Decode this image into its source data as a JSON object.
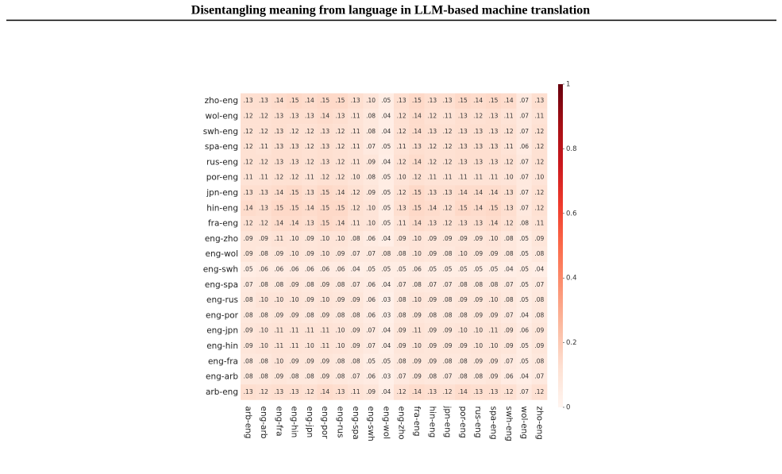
{
  "header": {
    "title": "Disentangling meaning from language in LLM-based machine translation"
  },
  "chart_data": {
    "type": "heatmap",
    "rows": [
      "zho-eng",
      "wol-eng",
      "swh-eng",
      "spa-eng",
      "rus-eng",
      "por-eng",
      "jpn-eng",
      "hin-eng",
      "fra-eng",
      "eng-zho",
      "eng-wol",
      "eng-swh",
      "eng-spa",
      "eng-rus",
      "eng-por",
      "eng-jpn",
      "eng-hin",
      "eng-fra",
      "eng-arb",
      "arb-eng"
    ],
    "columns": [
      "arb-eng",
      "eng-arb",
      "eng-fra",
      "eng-hin",
      "eng-jpn",
      "eng-por",
      "eng-rus",
      "eng-spa",
      "eng-swh",
      "eng-wol",
      "eng-zho",
      "fra-eng",
      "hin-eng",
      "jpn-eng",
      "por-eng",
      "rus-eng",
      "spa-eng",
      "swh-eng",
      "wol-eng",
      "zho-eng"
    ],
    "values": [
      [
        0.13,
        0.13,
        0.14,
        0.15,
        0.14,
        0.15,
        0.15,
        0.13,
        0.1,
        0.05,
        0.13,
        0.15,
        0.13,
        0.13,
        0.15,
        0.14,
        0.15,
        0.14,
        0.07,
        0.13
      ],
      [
        0.12,
        0.12,
        0.13,
        0.13,
        0.13,
        0.14,
        0.13,
        0.11,
        0.08,
        0.04,
        0.12,
        0.14,
        0.12,
        0.11,
        0.13,
        0.12,
        0.13,
        0.11,
        0.07,
        0.11
      ],
      [
        0.12,
        0.12,
        0.13,
        0.12,
        0.12,
        0.13,
        0.12,
        0.11,
        0.08,
        0.04,
        0.12,
        0.14,
        0.13,
        0.12,
        0.13,
        0.13,
        0.13,
        0.12,
        0.07,
        0.12
      ],
      [
        0.12,
        0.11,
        0.13,
        0.13,
        0.12,
        0.13,
        0.12,
        0.11,
        0.07,
        0.05,
        0.11,
        0.13,
        0.12,
        0.12,
        0.13,
        0.13,
        0.13,
        0.11,
        0.06,
        0.12
      ],
      [
        0.12,
        0.12,
        0.13,
        0.13,
        0.12,
        0.13,
        0.12,
        0.11,
        0.09,
        0.04,
        0.12,
        0.14,
        0.12,
        0.12,
        0.13,
        0.13,
        0.13,
        0.12,
        0.07,
        0.12
      ],
      [
        0.11,
        0.11,
        0.12,
        0.12,
        0.11,
        0.12,
        0.12,
        0.1,
        0.08,
        0.05,
        0.1,
        0.12,
        0.11,
        0.11,
        0.11,
        0.11,
        0.11,
        0.1,
        0.07,
        0.1
      ],
      [
        0.13,
        0.13,
        0.14,
        0.15,
        0.13,
        0.15,
        0.14,
        0.12,
        0.09,
        0.05,
        0.12,
        0.15,
        0.13,
        0.13,
        0.14,
        0.14,
        0.14,
        0.13,
        0.07,
        0.12
      ],
      [
        0.14,
        0.13,
        0.15,
        0.15,
        0.14,
        0.15,
        0.15,
        0.12,
        0.1,
        0.05,
        0.13,
        0.15,
        0.14,
        0.12,
        0.15,
        0.14,
        0.15,
        0.13,
        0.07,
        0.12
      ],
      [
        0.12,
        0.12,
        0.14,
        0.14,
        0.13,
        0.15,
        0.14,
        0.11,
        0.1,
        0.05,
        0.11,
        0.14,
        0.13,
        0.12,
        0.13,
        0.13,
        0.14,
        0.12,
        0.08,
        0.11
      ],
      [
        0.09,
        0.09,
        0.11,
        0.1,
        0.09,
        0.1,
        0.1,
        0.08,
        0.06,
        0.04,
        0.09,
        0.1,
        0.09,
        0.09,
        0.09,
        0.09,
        0.1,
        0.08,
        0.05,
        0.09
      ],
      [
        0.09,
        0.08,
        0.09,
        0.1,
        0.09,
        0.1,
        0.09,
        0.07,
        0.07,
        0.08,
        0.08,
        0.1,
        0.09,
        0.08,
        0.1,
        0.09,
        0.09,
        0.08,
        0.05,
        0.08
      ],
      [
        0.05,
        0.06,
        0.06,
        0.06,
        0.06,
        0.06,
        0.06,
        0.04,
        0.05,
        0.05,
        0.05,
        0.06,
        0.05,
        0.05,
        0.05,
        0.05,
        0.05,
        0.04,
        0.05,
        0.04
      ],
      [
        0.07,
        0.08,
        0.08,
        0.09,
        0.08,
        0.09,
        0.08,
        0.07,
        0.06,
        0.04,
        0.07,
        0.08,
        0.07,
        0.07,
        0.08,
        0.08,
        0.08,
        0.07,
        0.05,
        0.07
      ],
      [
        0.08,
        0.1,
        0.1,
        0.1,
        0.09,
        0.1,
        0.09,
        0.09,
        0.06,
        0.03,
        0.08,
        0.1,
        0.09,
        0.08,
        0.09,
        0.09,
        0.1,
        0.08,
        0.05,
        0.08
      ],
      [
        0.08,
        0.08,
        0.09,
        0.09,
        0.08,
        0.09,
        0.08,
        0.08,
        0.06,
        0.03,
        0.08,
        0.09,
        0.08,
        0.08,
        0.08,
        0.09,
        0.09,
        0.07,
        0.04,
        0.08
      ],
      [
        0.09,
        0.1,
        0.11,
        0.11,
        0.11,
        0.11,
        0.1,
        0.09,
        0.07,
        0.04,
        0.09,
        0.11,
        0.09,
        0.09,
        0.1,
        0.1,
        0.11,
        0.09,
        0.06,
        0.09
      ],
      [
        0.09,
        0.1,
        0.11,
        0.11,
        0.1,
        0.11,
        0.1,
        0.09,
        0.07,
        0.04,
        0.09,
        0.1,
        0.09,
        0.09,
        0.09,
        0.1,
        0.1,
        0.09,
        0.05,
        0.09
      ],
      [
        0.08,
        0.08,
        0.1,
        0.09,
        0.09,
        0.09,
        0.08,
        0.08,
        0.05,
        0.05,
        0.08,
        0.09,
        0.09,
        0.08,
        0.08,
        0.09,
        0.09,
        0.07,
        0.05,
        0.08
      ],
      [
        0.08,
        0.08,
        0.09,
        0.08,
        0.08,
        0.09,
        0.08,
        0.07,
        0.06,
        0.03,
        0.07,
        0.09,
        0.08,
        0.07,
        0.08,
        0.08,
        0.09,
        0.06,
        0.04,
        0.07
      ],
      [
        0.13,
        0.12,
        0.13,
        0.13,
        0.12,
        0.14,
        0.13,
        0.11,
        0.09,
        0.04,
        0.12,
        0.14,
        0.13,
        0.12,
        0.14,
        0.13,
        0.13,
        0.12,
        0.07,
        0.12
      ]
    ],
    "value_labels": [
      [
        ".13",
        ".13",
        ".14",
        ".15",
        ".14",
        ".15",
        ".15",
        ".13",
        ".10",
        ".05",
        ".13",
        ".15",
        ".13",
        ".13",
        ".15",
        ".14",
        ".15",
        ".14",
        ".07",
        ".13"
      ],
      [
        ".12",
        ".12",
        ".13",
        ".13",
        ".13",
        ".14",
        ".13",
        ".11",
        ".08",
        ".04",
        ".12",
        ".14",
        ".12",
        ".11",
        ".13",
        ".12",
        ".13",
        ".11",
        ".07",
        ".11"
      ],
      [
        ".12",
        ".12",
        ".13",
        ".12",
        ".12",
        ".13",
        ".12",
        ".11",
        ".08",
        ".04",
        ".12",
        ".14",
        ".13",
        ".12",
        ".13",
        ".13",
        ".13",
        ".12",
        ".07",
        ".12"
      ],
      [
        ".12",
        ".11",
        ".13",
        ".13",
        ".12",
        ".13",
        ".12",
        ".11",
        ".07",
        ".05",
        ".11",
        ".13",
        ".12",
        ".12",
        ".13",
        ".13",
        ".13",
        ".11",
        ".06",
        ".12"
      ],
      [
        ".12",
        ".12",
        ".13",
        ".13",
        ".12",
        ".13",
        ".12",
        ".11",
        ".09",
        ".04",
        ".12",
        ".14",
        ".12",
        ".12",
        ".13",
        ".13",
        ".13",
        ".12",
        ".07",
        ".12"
      ],
      [
        ".11",
        ".11",
        ".12",
        ".12",
        ".11",
        ".12",
        ".12",
        ".10",
        ".08",
        ".05",
        ".10",
        ".12",
        ".11",
        ".11",
        ".11",
        ".11",
        ".11",
        ".10",
        ".07",
        ".10"
      ],
      [
        ".13",
        ".13",
        ".14",
        ".15",
        ".13",
        ".15",
        ".14",
        ".12",
        ".09",
        ".05",
        ".12",
        ".15",
        ".13",
        ".13",
        ".14",
        ".14",
        ".14",
        ".13",
        ".07",
        ".12"
      ],
      [
        ".14",
        ".13",
        ".15",
        ".15",
        ".14",
        ".15",
        ".15",
        ".12",
        ".10",
        ".05",
        ".13",
        ".15",
        ".14",
        ".12",
        ".15",
        ".14",
        ".15",
        ".13",
        ".07",
        ".12"
      ],
      [
        ".12",
        ".12",
        ".14",
        ".14",
        ".13",
        ".15",
        ".14",
        ".11",
        ".10",
        ".05",
        ".11",
        ".14",
        ".13",
        ".12",
        ".13",
        ".13",
        ".14",
        ".12",
        ".08",
        ".11"
      ],
      [
        ".09",
        ".09",
        ".11",
        ".10",
        ".09",
        ".10",
        ".10",
        ".08",
        ".06",
        ".04",
        ".09",
        ".10",
        ".09",
        ".09",
        ".09",
        ".09",
        ".10",
        ".08",
        ".05",
        ".09"
      ],
      [
        ".09",
        ".08",
        ".09",
        ".10",
        ".09",
        ".10",
        ".09",
        ".07",
        ".07",
        ".08",
        ".08",
        ".10",
        ".09",
        ".08",
        ".10",
        ".09",
        ".09",
        ".08",
        ".05",
        ".08"
      ],
      [
        ".05",
        ".06",
        ".06",
        ".06",
        ".06",
        ".06",
        ".06",
        ".04",
        ".05",
        ".05",
        ".05",
        ".06",
        ".05",
        ".05",
        ".05",
        ".05",
        ".05",
        ".04",
        ".05",
        ".04"
      ],
      [
        ".07",
        ".08",
        ".08",
        ".09",
        ".08",
        ".09",
        ".08",
        ".07",
        ".06",
        ".04",
        ".07",
        ".08",
        ".07",
        ".07",
        ".08",
        ".08",
        ".08",
        ".07",
        ".05",
        ".07"
      ],
      [
        ".08",
        ".10",
        ".10",
        ".10",
        ".09",
        ".10",
        ".09",
        ".09",
        ".06",
        ".03",
        ".08",
        ".10",
        ".09",
        ".08",
        ".09",
        ".09",
        ".10",
        ".08",
        ".05",
        ".08"
      ],
      [
        ".08",
        ".08",
        ".09",
        ".09",
        ".08",
        ".09",
        ".08",
        ".08",
        ".06",
        ".03",
        ".08",
        ".09",
        ".08",
        ".08",
        ".08",
        ".09",
        ".09",
        ".07",
        ".04",
        ".08"
      ],
      [
        ".09",
        ".10",
        ".11",
        ".11",
        ".11",
        ".11",
        ".10",
        ".09",
        ".07",
        ".04",
        ".09",
        ".11",
        ".09",
        ".09",
        ".10",
        ".10",
        ".11",
        ".09",
        ".06",
        ".09"
      ],
      [
        ".09",
        ".10",
        ".11",
        ".11",
        ".10",
        ".11",
        ".10",
        ".09",
        ".07",
        ".04",
        ".09",
        ".10",
        ".09",
        ".09",
        ".09",
        ".10",
        ".10",
        ".09",
        ".05",
        ".09"
      ],
      [
        ".08",
        ".08",
        ".10",
        ".09",
        ".09",
        ".09",
        ".08",
        ".08",
        ".05",
        ".05",
        ".08",
        ".09",
        ".09",
        ".08",
        ".08",
        ".09",
        ".09",
        ".07",
        ".05",
        ".08"
      ],
      [
        ".08",
        ".08",
        ".09",
        ".08",
        ".08",
        ".09",
        ".08",
        ".07",
        ".06",
        ".03",
        ".07",
        ".09",
        ".08",
        ".07",
        ".08",
        ".08",
        ".09",
        ".06",
        ".04",
        ".07"
      ],
      [
        ".13",
        ".12",
        ".13",
        ".13",
        ".12",
        ".14",
        ".13",
        ".11",
        ".09",
        ".04",
        ".12",
        ".14",
        ".13",
        ".12",
        ".14",
        ".13",
        ".13",
        ".12",
        ".07",
        ".12"
      ]
    ],
    "colormap": "Reds",
    "clim": [
      0,
      1
    ],
    "cticks": [
      0,
      0.2,
      0.4,
      0.6,
      0.8,
      1
    ]
  }
}
